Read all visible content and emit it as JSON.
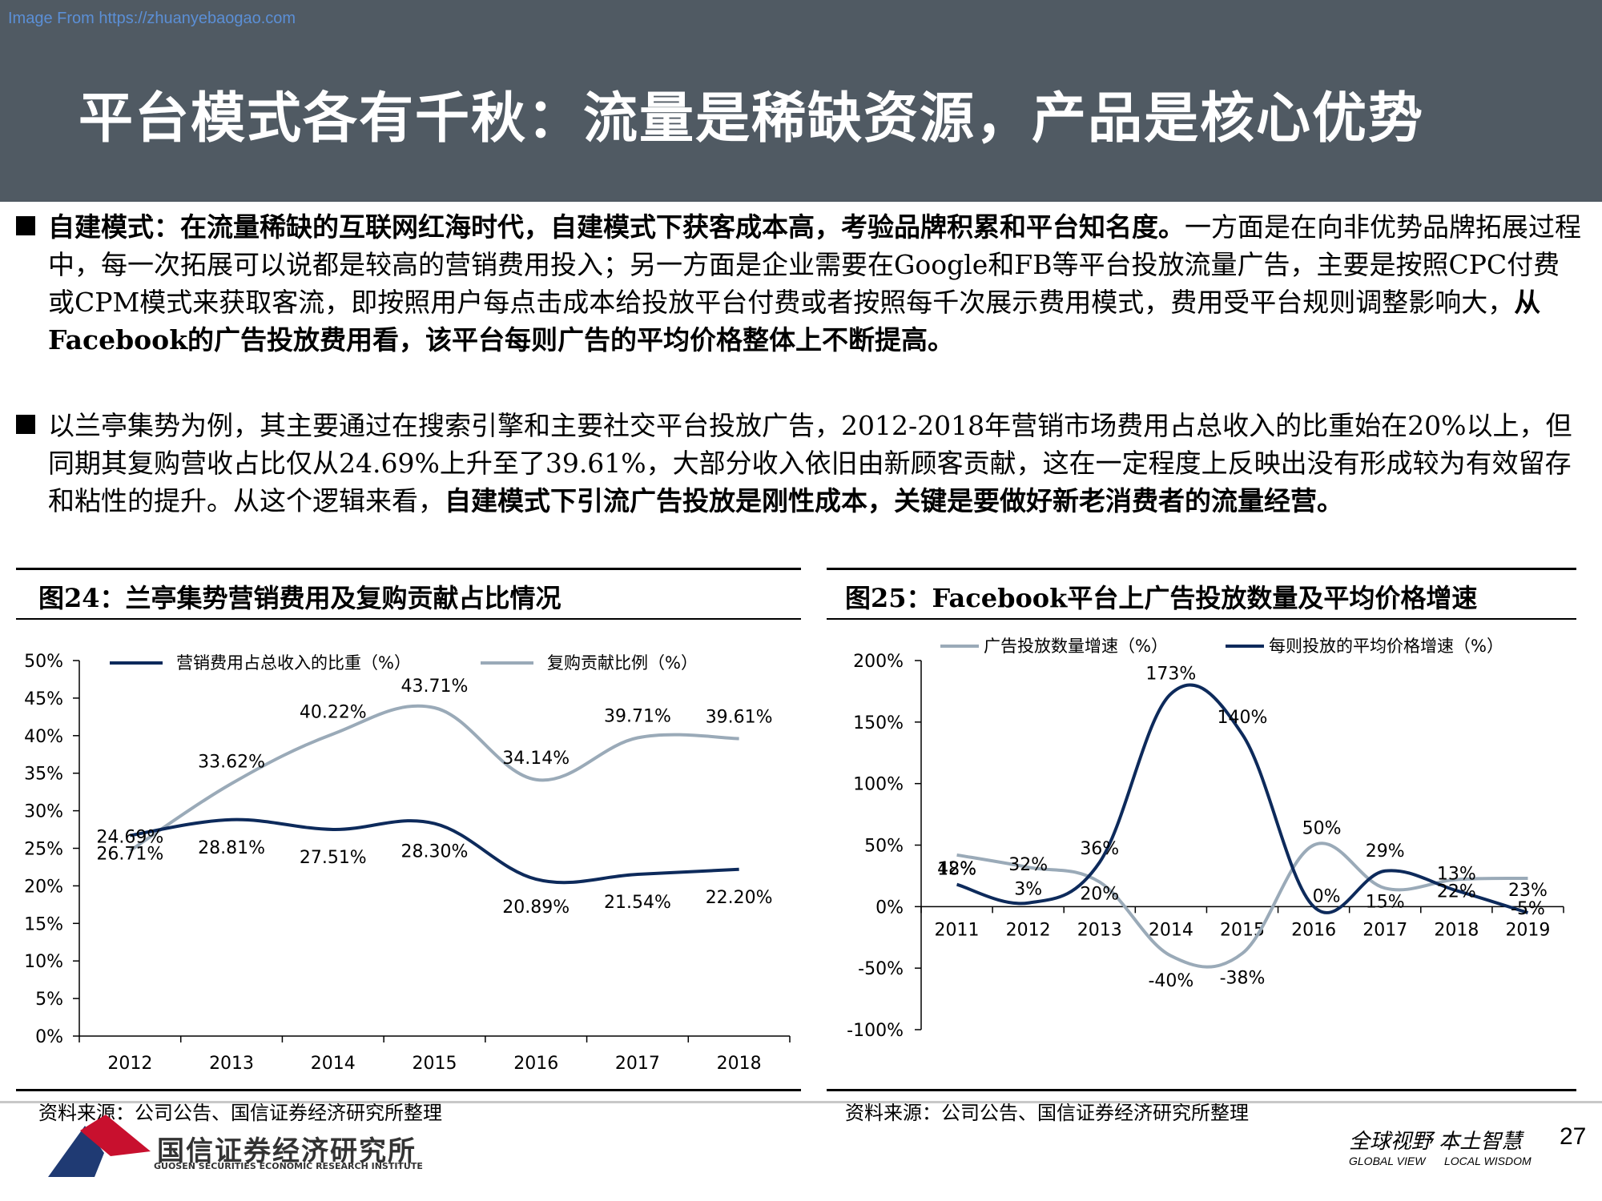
{
  "watermark": "Image From https://zhuanyebaogao.com",
  "title": "平台模式各有千秋：流量是稀缺资源，产品是核心优势",
  "paragraphs": {
    "p1_bold1": "自建模式：在流量稀缺的互联网红海时代，自建模式下获客成本高，考验品牌积累和平台知名度。",
    "p1_normal": "一方面是在向非优势品牌拓展过程中，每一次拓展可以说都是较高的营销费用投入；另一方面是企业需要在Google和FB等平台投放流量广告，主要是按照CPC付费或CPM模式来获取客流，即按照用户每点击成本给投放平台付费或者按照每千次展示费用模式，费用受平台规则调整影响大，",
    "p1_bold2": "从Facebook的广告投放费用看，该平台每则广告的平均价格整体上不断提高。",
    "p2_normal": "以兰亭集势为例，其主要通过在搜索引擎和主要社交平台投放广告，2012-2018年营销市场费用占总收入的比重始在20%以上，但同期其复购营收占比仅从24.69%上升至了39.61%，大部分收入依旧由新顾客贡献，这在一定程度上反映出没有形成较为有效留存和粘性的提升。从这个逻辑来看，",
    "p2_bold": "自建模式下引流广告投放是刚性成本，关键是要做好新老消费者的流量经营。"
  },
  "fig24": {
    "title": "图24：兰亭集势营销费用及复购贡献占比情况",
    "source": "资料来源：公司公告、国信证券经济研究所整理"
  },
  "fig25": {
    "title": "图25：Facebook平台上广告投放数量及平均价格增速",
    "source": "资料来源：公司公告、国信证券经济研究所整理"
  },
  "footer": {
    "logo_cn": "国信证券经济研究所",
    "logo_en": "GUOSEN SECURITIES ECONOMIC RESEARCH INSTITUTE",
    "slogan": "全球视野 本土智慧",
    "slogan_en1": "GLOBAL VIEW",
    "slogan_en2": "LOCAL WISDOM",
    "page": "27"
  },
  "colors": {
    "dark_navy": "#0d2a5b",
    "light_gray_blue": "#9aaab8",
    "header_bg": "#505a63",
    "logo_red": "#c8102e",
    "logo_navy": "#1f3a73"
  },
  "chart_data": [
    {
      "type": "line",
      "categories": [
        "2012",
        "2013",
        "2014",
        "2015",
        "2016",
        "2017",
        "2018"
      ],
      "series": [
        {
          "name": "营销费用占总收入的比重（%）",
          "values": [
            26.71,
            28.81,
            27.51,
            28.3,
            20.89,
            21.54,
            22.2
          ],
          "labels": [
            "26.71%",
            "28.81%",
            "27.51%",
            "28.30%",
            "20.89%",
            "21.54%",
            "22.20%"
          ],
          "color": "#0d2a5b"
        },
        {
          "name": "复购贡献比例（%）",
          "values": [
            24.69,
            33.62,
            40.22,
            43.71,
            34.14,
            39.71,
            39.61
          ],
          "labels": [
            "24.69%",
            "33.62%",
            "40.22%",
            "43.71%",
            "34.14%",
            "39.71%",
            "39.61%"
          ],
          "color": "#9aaab8"
        }
      ],
      "yticks": [
        "0%",
        "5%",
        "10%",
        "15%",
        "20%",
        "25%",
        "30%",
        "35%",
        "40%",
        "45%",
        "50%"
      ],
      "ylim": [
        0,
        50
      ],
      "legend_position": "top"
    },
    {
      "type": "line",
      "categories": [
        "2011",
        "2012",
        "2013",
        "2014",
        "2015",
        "2016",
        "2017",
        "2018",
        "2019"
      ],
      "series": [
        {
          "name": "广告投放数量增速（%）",
          "values": [
            42,
            32,
            20,
            -40,
            -38,
            50,
            15,
            22,
            23
          ],
          "labels": [
            "42%",
            "32%",
            "20%",
            "-40%",
            "-38%",
            "50%",
            "15%",
            "22%",
            "23%"
          ],
          "color": "#9aaab8"
        },
        {
          "name": "每则投放的平均价格增速（%）",
          "values": [
            18,
            3,
            36,
            173,
            140,
            0,
            29,
            13,
            -5
          ],
          "labels": [
            "18%",
            "3%",
            "36%",
            "173%",
            "140%",
            "0%",
            "29%",
            "13%",
            "-5%"
          ],
          "color": "#0d2a5b"
        }
      ],
      "yticks": [
        "-100%",
        "-50%",
        "0%",
        "50%",
        "100%",
        "150%",
        "200%"
      ],
      "ylim": [
        -100,
        200
      ],
      "legend_position": "top"
    }
  ]
}
